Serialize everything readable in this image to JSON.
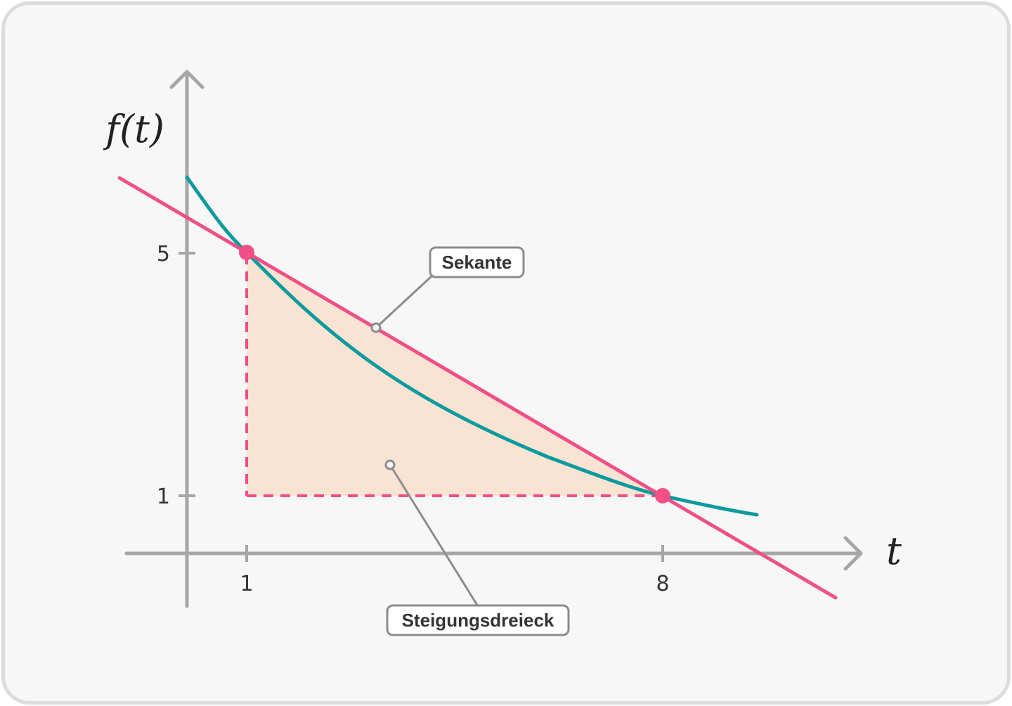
{
  "diagram": {
    "x_axis_label": "t",
    "y_axis_label": "f(t)",
    "x_ticks": [
      "1",
      "8"
    ],
    "y_ticks": [
      "5",
      "1"
    ],
    "callouts": {
      "secant": "Sekante",
      "slope_triangle": "Steigungsdreieck"
    },
    "points": [
      {
        "t": 1,
        "f": 5
      },
      {
        "t": 8,
        "f": 1
      }
    ],
    "colors": {
      "curve": "#0b9a9e",
      "secant": "#f04f87",
      "triangle_fill": "#f9e3d3",
      "axis": "#a6a6a6",
      "callout_border": "#8c8c8c"
    }
  }
}
